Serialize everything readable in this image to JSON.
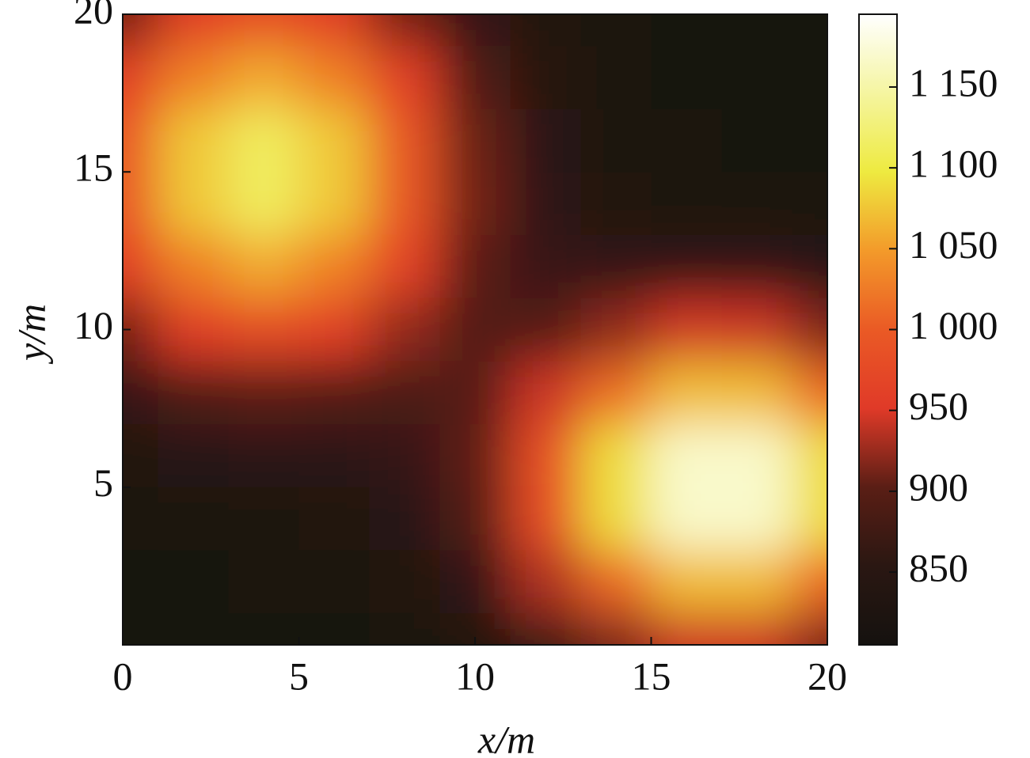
{
  "chart_data": {
    "type": "heatmap",
    "x_label": "x/m",
    "y_label": "y/m",
    "x": [
      0,
      2,
      4,
      6,
      8,
      10,
      12,
      14,
      16,
      18,
      20
    ],
    "y": [
      0,
      2,
      4,
      6,
      8,
      10,
      12,
      14,
      16,
      18,
      20
    ],
    "z": [
      [
        811,
        811,
        812,
        814,
        822,
        840,
        873,
        915,
        944,
        944,
        915
      ],
      [
        813,
        814,
        816,
        820,
        834,
        860,
        933,
        1011,
        1069,
        1069,
        1011
      ],
      [
        819,
        824,
        828,
        833,
        849,
        895,
        981,
        1090,
        1168,
        1168,
        1089
      ],
      [
        835,
        847,
        854,
        856,
        865,
        904,
        985,
        1091,
        1168,
        1168,
        1089
      ],
      [
        866,
        891,
        903,
        897,
        887,
        898,
        944,
        1015,
        1070,
        1069,
        1011
      ],
      [
        912,
        958,
        978,
        961,
        923,
        894,
        896,
        922,
        946,
        944,
        915
      ],
      [
        961,
        1029,
        1058,
        1030,
        965,
        902,
        868,
        860,
        863,
        860,
        849
      ],
      [
        994,
        1077,
        1113,
        1077,
        995,
        911,
        858,
        834,
        827,
        825,
        821
      ],
      [
        994,
        1077,
        1113,
        1077,
        994,
        908,
        851,
        823,
        816,
        813,
        812
      ],
      [
        961,
        1029,
        1058,
        1029,
        961,
        891,
        844,
        821,
        813,
        810,
        810
      ],
      [
        912,
        958,
        977,
        958,
        912,
        864,
        833,
        817,
        812,
        810,
        810
      ]
    ],
    "xlim": [
      0,
      20
    ],
    "xticks": [
      0,
      5,
      10,
      15,
      20
    ],
    "ylim": [
      0,
      20
    ],
    "yticks": [
      5,
      10,
      15,
      20
    ],
    "colormap": [
      "#15120f",
      "#2a1712",
      "#5a1e15",
      "#e03a28",
      "#ea5a25",
      "#f39a2a",
      "#eeea40",
      "#f5f5a0",
      "#ffffff"
    ],
    "clim": [
      805,
      1195
    ],
    "cticks": [
      850,
      900,
      950,
      {
        "value": 1000,
        "label": "1 000"
      },
      {
        "value": 1050,
        "label": "1 050"
      },
      {
        "value": 1100,
        "label": "1 100"
      },
      {
        "value": 1150,
        "label": "1 150"
      }
    ]
  }
}
